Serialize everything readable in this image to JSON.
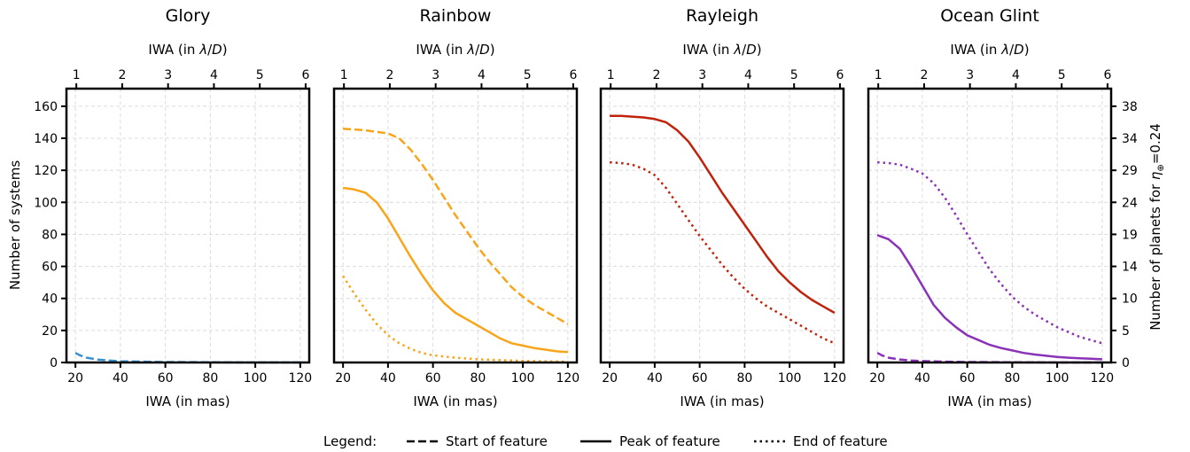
{
  "figure": {
    "ylabel_left": "Number of systems",
    "ylabel_right_prefix": "Number of planets for ",
    "ylabel_right_eta": "η",
    "ylabel_right_sub": "⊕",
    "ylabel_right_value": "=0.24",
    "xlabel_bottom": "IWA (in mas)",
    "xlabel_top_prefix": "IWA (in ",
    "xlabel_top_lambda": "λ",
    "xlabel_top_slash": "/",
    "xlabel_top_D": "D",
    "xlabel_top_suffix": ")"
  },
  "legend": {
    "title": "Legend:",
    "items": [
      {
        "label": "Start of feature",
        "style": "dashed"
      },
      {
        "label": "Peak of feature",
        "style": "solid"
      },
      {
        "label": "End of feature",
        "style": "dotted"
      }
    ]
  },
  "axes": {
    "x_ticks": [
      20,
      40,
      60,
      80,
      100,
      120
    ],
    "x_top_ticks": [
      1,
      2,
      3,
      4,
      5,
      6
    ],
    "y_ticks": [
      0,
      20,
      40,
      60,
      80,
      100,
      120,
      140,
      160
    ],
    "y_right_ticks": [
      "0",
      "5",
      "10",
      "14",
      "19",
      "24",
      "29",
      "34",
      "38"
    ],
    "x_top_ratio": 20.4
  },
  "chart_data": [
    {
      "type": "line",
      "title": "Glory",
      "color": "#3a8fd0",
      "xlim": [
        16,
        124
      ],
      "ylim": [
        0,
        171
      ],
      "grid": true,
      "series": [
        {
          "style": "dashed",
          "x": [
            20,
            22,
            25,
            30,
            35,
            40,
            50,
            60,
            70,
            80,
            90,
            100,
            110,
            120
          ],
          "y": [
            6,
            4.5,
            3,
            1.8,
            1.2,
            0.8,
            0.5,
            0.3,
            0.2,
            0.1,
            0.05,
            0,
            0,
            0
          ]
        }
      ]
    },
    {
      "type": "line",
      "title": "Rainbow",
      "color": "#f9a51a",
      "xlim": [
        16,
        124
      ],
      "ylim": [
        0,
        171
      ],
      "grid": true,
      "series": [
        {
          "style": "dashed",
          "x": [
            20,
            25,
            30,
            35,
            40,
            45,
            50,
            55,
            60,
            65,
            70,
            75,
            80,
            85,
            90,
            95,
            100,
            105,
            110,
            115,
            120
          ],
          "y": [
            146,
            145.5,
            145,
            144,
            143,
            140,
            133,
            124,
            114,
            103,
            92,
            82,
            72,
            63,
            55,
            47,
            41,
            36,
            32,
            28,
            24
          ]
        },
        {
          "style": "solid",
          "x": [
            20,
            25,
            30,
            35,
            40,
            45,
            50,
            55,
            60,
            65,
            70,
            75,
            80,
            85,
            90,
            95,
            100,
            105,
            110,
            115,
            120
          ],
          "y": [
            109,
            108,
            106,
            100,
            90,
            78,
            66,
            55,
            45,
            37,
            31,
            27,
            23,
            19,
            15,
            12,
            10.5,
            9,
            8,
            7,
            6.5
          ]
        },
        {
          "style": "dotted",
          "x": [
            20,
            25,
            30,
            35,
            40,
            45,
            50,
            55,
            60,
            70,
            80,
            90,
            100,
            110,
            120
          ],
          "y": [
            54,
            43,
            33,
            24,
            17,
            12,
            8.5,
            6,
            4.5,
            3,
            2,
            1.5,
            1,
            0.7,
            0.5
          ]
        }
      ]
    },
    {
      "type": "line",
      "title": "Rayleigh",
      "color": "#c0230b",
      "xlim": [
        16,
        124
      ],
      "ylim": [
        0,
        171
      ],
      "grid": true,
      "series": [
        {
          "style": "solid",
          "x": [
            20,
            25,
            30,
            35,
            40,
            45,
            50,
            55,
            60,
            65,
            70,
            75,
            80,
            85,
            90,
            95,
            100,
            105,
            110,
            115,
            120
          ],
          "y": [
            154,
            154,
            153.5,
            153,
            152,
            150,
            145,
            138,
            128,
            117,
            106,
            96,
            86,
            76,
            66,
            57,
            50,
            44,
            39,
            35,
            31
          ]
        },
        {
          "style": "dotted",
          "x": [
            20,
            25,
            30,
            35,
            40,
            45,
            50,
            55,
            60,
            65,
            70,
            75,
            80,
            85,
            90,
            95,
            100,
            105,
            110,
            115,
            120
          ],
          "y": [
            125,
            124.5,
            123.5,
            121,
            117,
            109,
            99,
            89,
            79,
            70,
            61,
            53,
            46,
            40,
            35,
            31,
            27,
            23,
            19,
            15,
            12
          ]
        }
      ]
    },
    {
      "type": "line",
      "title": "Ocean Glint",
      "color": "#8a32b8",
      "xlim": [
        16,
        124
      ],
      "ylim": [
        0,
        171
      ],
      "grid": true,
      "series": [
        {
          "style": "dashed",
          "x": [
            20,
            22,
            25,
            30,
            35,
            40,
            50,
            60,
            70,
            80,
            90,
            100,
            110,
            120
          ],
          "y": [
            6,
            4.5,
            3,
            1.9,
            1.2,
            0.9,
            0.5,
            0.3,
            0.2,
            0.1,
            0.05,
            0,
            0,
            0
          ]
        },
        {
          "style": "solid",
          "x": [
            20,
            25,
            30,
            35,
            40,
            45,
            50,
            55,
            60,
            65,
            70,
            75,
            80,
            85,
            90,
            95,
            100,
            105,
            110,
            115,
            120
          ],
          "y": [
            79.5,
            77,
            71,
            60,
            48,
            36,
            28,
            22,
            17,
            14,
            11,
            9,
            7.5,
            6,
            5,
            4.2,
            3.5,
            3,
            2.6,
            2.3,
            2
          ]
        },
        {
          "style": "dotted",
          "x": [
            20,
            25,
            30,
            35,
            40,
            45,
            50,
            55,
            60,
            65,
            70,
            75,
            80,
            85,
            90,
            95,
            100,
            105,
            110,
            115,
            120
          ],
          "y": [
            125,
            124.5,
            123.5,
            121,
            118,
            112,
            103,
            92,
            80,
            69,
            58,
            49,
            41,
            35,
            30,
            26,
            22,
            19,
            16,
            14,
            12
          ]
        }
      ]
    }
  ]
}
